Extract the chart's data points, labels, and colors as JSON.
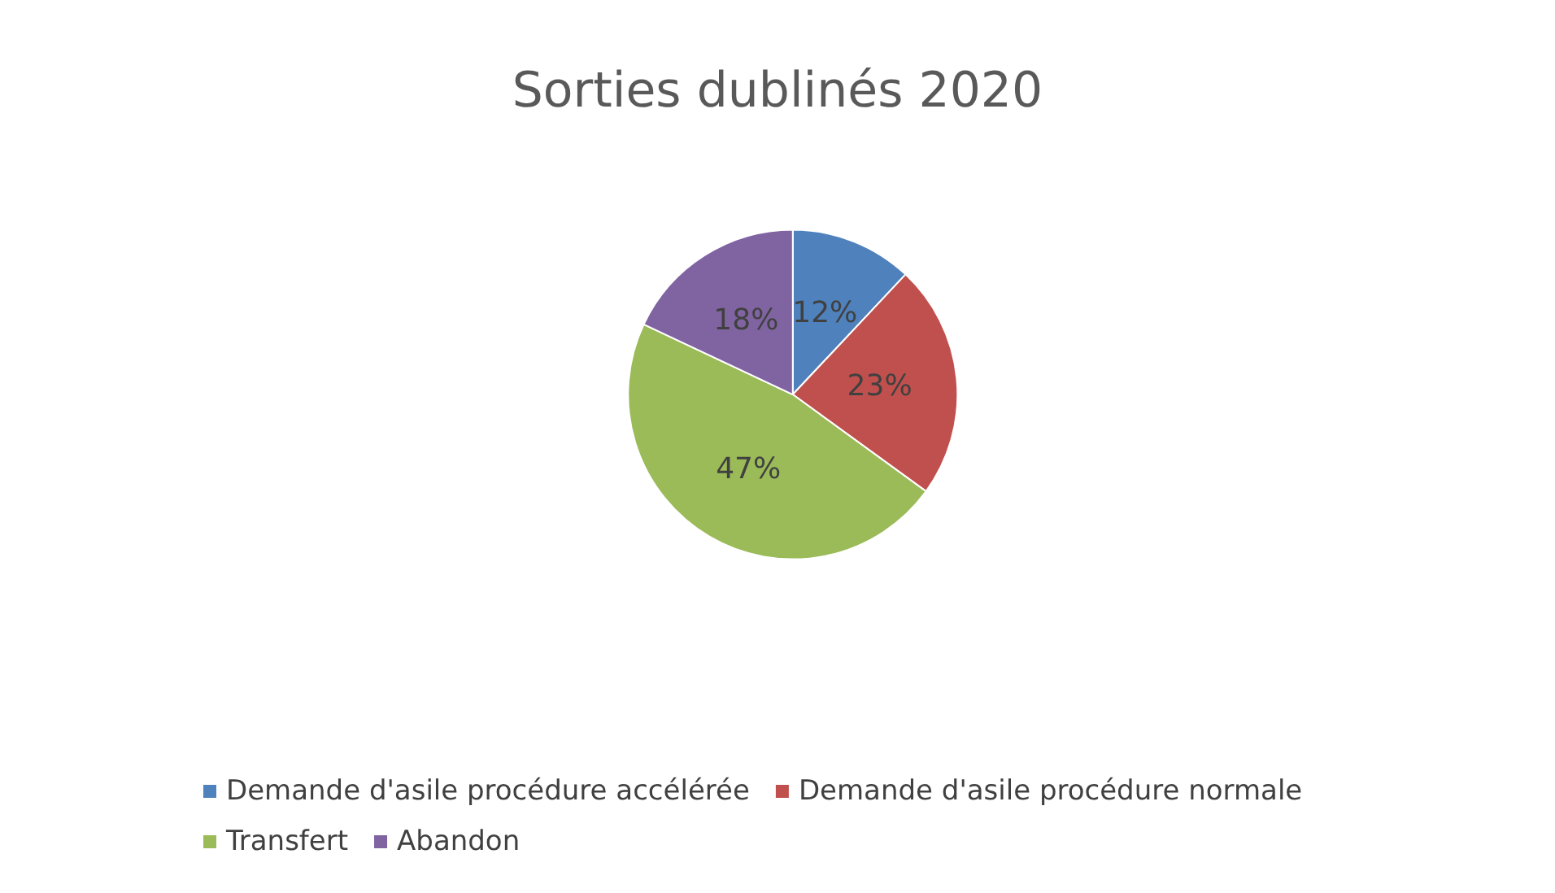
{
  "chart_data": {
    "type": "pie",
    "title": "Sorties dublinés 2020",
    "categories": [
      "Demande d'asile procédure accélérée",
      "Demande d'asile procédure normale",
      "Transfert",
      "Abandon"
    ],
    "values": [
      12,
      23,
      47,
      18
    ],
    "value_labels": [
      "12%",
      "23%",
      "47%",
      "18%"
    ],
    "colors": [
      "#4f81bd",
      "#c0504d",
      "#9bbb59",
      "#8064a2"
    ],
    "legend": "bottom"
  }
}
